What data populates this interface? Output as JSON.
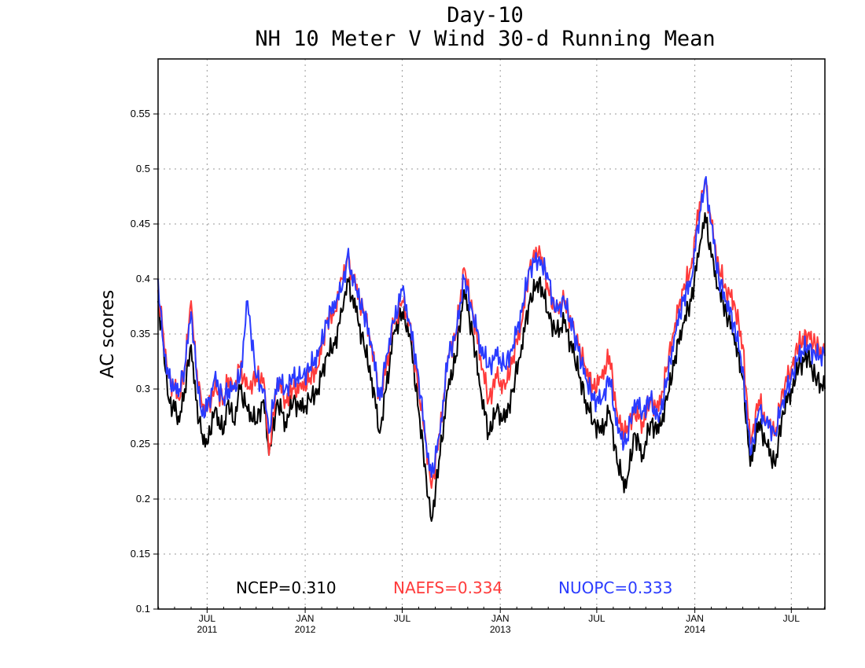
{
  "chart_data": {
    "type": "line",
    "title": "Day-10",
    "subtitle": "NH 10 Meter V Wind 30-d Running Mean",
    "xlabel": "",
    "ylabel": "AC scores",
    "xlim": [
      "2011-03-31",
      "2014-09-02"
    ],
    "ylim": [
      0.1,
      0.6
    ],
    "yticks": [
      0.1,
      0.15,
      0.2,
      0.25,
      0.3,
      0.35,
      0.4,
      0.45,
      0.5,
      0.55
    ],
    "xticks": [
      {
        "date": "2011-07-01",
        "label": "JUL",
        "year": "2011"
      },
      {
        "date": "2012-01-01",
        "label": "JAN",
        "year": "2012"
      },
      {
        "date": "2012-07-01",
        "label": "JUL",
        "year": ""
      },
      {
        "date": "2013-01-01",
        "label": "JAN",
        "year": "2013"
      },
      {
        "date": "2013-07-01",
        "label": "JUL",
        "year": ""
      },
      {
        "date": "2014-01-01",
        "label": "JAN",
        "year": "2014"
      },
      {
        "date": "2014-07-01",
        "label": "JUL",
        "year": ""
      }
    ],
    "grid": true,
    "legend_position": "bottom",
    "series": [
      {
        "name": "NCEP",
        "mean_label": "NCEP=0.310",
        "color": "#000000",
        "points": [
          [
            "2011-03-31",
            0.38
          ],
          [
            "2011-04-10",
            0.34
          ],
          [
            "2011-04-20",
            0.29
          ],
          [
            "2011-05-01",
            0.28
          ],
          [
            "2011-05-10",
            0.27
          ],
          [
            "2011-05-20",
            0.3
          ],
          [
            "2011-06-01",
            0.34
          ],
          [
            "2011-06-10",
            0.29
          ],
          [
            "2011-06-20",
            0.26
          ],
          [
            "2011-07-01",
            0.25
          ],
          [
            "2011-07-15",
            0.28
          ],
          [
            "2011-08-01",
            0.26
          ],
          [
            "2011-08-10",
            0.29
          ],
          [
            "2011-08-20",
            0.27
          ],
          [
            "2011-09-01",
            0.3
          ],
          [
            "2011-09-15",
            0.28
          ],
          [
            "2011-10-01",
            0.27
          ],
          [
            "2011-10-15",
            0.29
          ],
          [
            "2011-10-25",
            0.24
          ],
          [
            "2011-11-10",
            0.29
          ],
          [
            "2011-11-25",
            0.27
          ],
          [
            "2011-12-10",
            0.29
          ],
          [
            "2011-12-25",
            0.28
          ],
          [
            "2012-01-10",
            0.29
          ],
          [
            "2012-01-25",
            0.3
          ],
          [
            "2012-02-10",
            0.33
          ],
          [
            "2012-02-25",
            0.34
          ],
          [
            "2012-03-10",
            0.37
          ],
          [
            "2012-03-20",
            0.4
          ],
          [
            "2012-04-05",
            0.37
          ],
          [
            "2012-04-20",
            0.34
          ],
          [
            "2012-05-05",
            0.31
          ],
          [
            "2012-05-20",
            0.26
          ],
          [
            "2012-06-01",
            0.3
          ],
          [
            "2012-06-15",
            0.35
          ],
          [
            "2012-07-01",
            0.37
          ],
          [
            "2012-07-15",
            0.35
          ],
          [
            "2012-08-01",
            0.28
          ],
          [
            "2012-08-15",
            0.22
          ],
          [
            "2012-08-25",
            0.18
          ],
          [
            "2012-09-10",
            0.24
          ],
          [
            "2012-09-25",
            0.3
          ],
          [
            "2012-10-10",
            0.33
          ],
          [
            "2012-10-25",
            0.39
          ],
          [
            "2012-11-10",
            0.35
          ],
          [
            "2012-11-25",
            0.3
          ],
          [
            "2012-12-10",
            0.26
          ],
          [
            "2012-12-25",
            0.28
          ],
          [
            "2013-01-10",
            0.27
          ],
          [
            "2013-01-25",
            0.3
          ],
          [
            "2013-02-10",
            0.34
          ],
          [
            "2013-02-25",
            0.38
          ],
          [
            "2013-03-15",
            0.4
          ],
          [
            "2013-04-01",
            0.37
          ],
          [
            "2013-04-15",
            0.35
          ],
          [
            "2013-05-01",
            0.36
          ],
          [
            "2013-05-20",
            0.33
          ],
          [
            "2013-06-10",
            0.29
          ],
          [
            "2013-06-25",
            0.27
          ],
          [
            "2013-07-10",
            0.26
          ],
          [
            "2013-07-25",
            0.28
          ],
          [
            "2013-08-10",
            0.23
          ],
          [
            "2013-08-25",
            0.21
          ],
          [
            "2013-09-10",
            0.26
          ],
          [
            "2013-09-25",
            0.24
          ],
          [
            "2013-10-10",
            0.27
          ],
          [
            "2013-10-25",
            0.26
          ],
          [
            "2013-11-10",
            0.29
          ],
          [
            "2013-11-25",
            0.33
          ],
          [
            "2013-12-10",
            0.36
          ],
          [
            "2013-12-25",
            0.38
          ],
          [
            "2014-01-10",
            0.43
          ],
          [
            "2014-01-20",
            0.46
          ],
          [
            "2014-02-01",
            0.42
          ],
          [
            "2014-02-15",
            0.39
          ],
          [
            "2014-03-01",
            0.37
          ],
          [
            "2014-03-15",
            0.35
          ],
          [
            "2014-04-01",
            0.31
          ],
          [
            "2014-04-15",
            0.23
          ],
          [
            "2014-05-01",
            0.27
          ],
          [
            "2014-05-15",
            0.25
          ],
          [
            "2014-06-01",
            0.23
          ],
          [
            "2014-06-15",
            0.28
          ],
          [
            "2014-07-01",
            0.3
          ],
          [
            "2014-07-15",
            0.32
          ],
          [
            "2014-08-01",
            0.33
          ],
          [
            "2014-08-15",
            0.31
          ],
          [
            "2014-09-02",
            0.3
          ]
        ]
      },
      {
        "name": "NAEFS",
        "mean_label": "NAEFS=0.334",
        "color": "#ff3b3b",
        "points": [
          [
            "2011-03-31",
            0.39
          ],
          [
            "2011-04-10",
            0.35
          ],
          [
            "2011-04-20",
            0.31
          ],
          [
            "2011-05-01",
            0.3
          ],
          [
            "2011-05-10",
            0.29
          ],
          [
            "2011-05-20",
            0.32
          ],
          [
            "2011-06-01",
            0.38
          ],
          [
            "2011-06-10",
            0.32
          ],
          [
            "2011-06-20",
            0.29
          ],
          [
            "2011-07-01",
            0.28
          ],
          [
            "2011-07-15",
            0.3
          ],
          [
            "2011-08-01",
            0.29
          ],
          [
            "2011-08-10",
            0.31
          ],
          [
            "2011-08-20",
            0.3
          ],
          [
            "2011-09-01",
            0.32
          ],
          [
            "2011-09-15",
            0.3
          ],
          [
            "2011-10-01",
            0.31
          ],
          [
            "2011-10-15",
            0.31
          ],
          [
            "2011-10-25",
            0.24
          ],
          [
            "2011-11-10",
            0.31
          ],
          [
            "2011-11-25",
            0.29
          ],
          [
            "2011-12-10",
            0.3
          ],
          [
            "2011-12-25",
            0.3
          ],
          [
            "2012-01-10",
            0.31
          ],
          [
            "2012-01-25",
            0.32
          ],
          [
            "2012-02-10",
            0.36
          ],
          [
            "2012-02-25",
            0.37
          ],
          [
            "2012-03-10",
            0.4
          ],
          [
            "2012-03-20",
            0.42
          ],
          [
            "2012-04-05",
            0.39
          ],
          [
            "2012-04-20",
            0.37
          ],
          [
            "2012-05-05",
            0.34
          ],
          [
            "2012-05-20",
            0.29
          ],
          [
            "2012-06-01",
            0.32
          ],
          [
            "2012-06-15",
            0.36
          ],
          [
            "2012-07-01",
            0.38
          ],
          [
            "2012-07-15",
            0.36
          ],
          [
            "2012-08-01",
            0.3
          ],
          [
            "2012-08-15",
            0.25
          ],
          [
            "2012-08-25",
            0.21
          ],
          [
            "2012-09-10",
            0.26
          ],
          [
            "2012-09-25",
            0.33
          ],
          [
            "2012-10-10",
            0.35
          ],
          [
            "2012-10-25",
            0.41
          ],
          [
            "2012-11-10",
            0.37
          ],
          [
            "2012-11-25",
            0.33
          ],
          [
            "2012-12-10",
            0.29
          ],
          [
            "2012-12-25",
            0.31
          ],
          [
            "2013-01-10",
            0.3
          ],
          [
            "2013-01-25",
            0.33
          ],
          [
            "2013-02-10",
            0.36
          ],
          [
            "2013-02-25",
            0.41
          ],
          [
            "2013-03-15",
            0.43
          ],
          [
            "2013-04-01",
            0.39
          ],
          [
            "2013-04-15",
            0.37
          ],
          [
            "2013-05-01",
            0.38
          ],
          [
            "2013-05-20",
            0.35
          ],
          [
            "2013-06-10",
            0.32
          ],
          [
            "2013-06-25",
            0.3
          ],
          [
            "2013-07-10",
            0.31
          ],
          [
            "2013-07-25",
            0.33
          ],
          [
            "2013-08-10",
            0.27
          ],
          [
            "2013-08-25",
            0.26
          ],
          [
            "2013-09-10",
            0.28
          ],
          [
            "2013-09-25",
            0.27
          ],
          [
            "2013-10-10",
            0.29
          ],
          [
            "2013-10-25",
            0.28
          ],
          [
            "2013-11-10",
            0.32
          ],
          [
            "2013-11-25",
            0.36
          ],
          [
            "2013-12-10",
            0.39
          ],
          [
            "2013-12-25",
            0.41
          ],
          [
            "2014-01-10",
            0.47
          ],
          [
            "2014-01-20",
            0.49
          ],
          [
            "2014-02-01",
            0.45
          ],
          [
            "2014-02-15",
            0.41
          ],
          [
            "2014-03-01",
            0.39
          ],
          [
            "2014-03-15",
            0.38
          ],
          [
            "2014-04-01",
            0.34
          ],
          [
            "2014-04-15",
            0.25
          ],
          [
            "2014-05-01",
            0.29
          ],
          [
            "2014-05-15",
            0.27
          ],
          [
            "2014-06-01",
            0.26
          ],
          [
            "2014-06-15",
            0.3
          ],
          [
            "2014-07-01",
            0.32
          ],
          [
            "2014-07-15",
            0.34
          ],
          [
            "2014-08-01",
            0.35
          ],
          [
            "2014-08-15",
            0.34
          ],
          [
            "2014-09-02",
            0.33
          ]
        ]
      },
      {
        "name": "NUOPC",
        "mean_label": "NUOPC=0.333",
        "color": "#2a3bff",
        "points": [
          [
            "2011-03-31",
            0.4
          ],
          [
            "2011-04-10",
            0.34
          ],
          [
            "2011-04-20",
            0.31
          ],
          [
            "2011-05-01",
            0.3
          ],
          [
            "2011-05-10",
            0.3
          ],
          [
            "2011-05-20",
            0.32
          ],
          [
            "2011-06-01",
            0.37
          ],
          [
            "2011-06-10",
            0.32
          ],
          [
            "2011-06-20",
            0.28
          ],
          [
            "2011-07-01",
            0.28
          ],
          [
            "2011-07-15",
            0.31
          ],
          [
            "2011-08-01",
            0.29
          ],
          [
            "2011-08-10",
            0.3
          ],
          [
            "2011-08-20",
            0.3
          ],
          [
            "2011-09-01",
            0.31
          ],
          [
            "2011-09-15",
            0.38
          ],
          [
            "2011-10-01",
            0.31
          ],
          [
            "2011-10-15",
            0.3
          ],
          [
            "2011-10-25",
            0.26
          ],
          [
            "2011-11-10",
            0.31
          ],
          [
            "2011-11-25",
            0.3
          ],
          [
            "2011-12-10",
            0.31
          ],
          [
            "2011-12-25",
            0.31
          ],
          [
            "2012-01-10",
            0.32
          ],
          [
            "2012-01-25",
            0.33
          ],
          [
            "2012-02-10",
            0.36
          ],
          [
            "2012-02-25",
            0.38
          ],
          [
            "2012-03-10",
            0.39
          ],
          [
            "2012-03-20",
            0.42
          ],
          [
            "2012-04-05",
            0.39
          ],
          [
            "2012-04-20",
            0.37
          ],
          [
            "2012-05-05",
            0.34
          ],
          [
            "2012-05-20",
            0.29
          ],
          [
            "2012-06-01",
            0.33
          ],
          [
            "2012-06-15",
            0.36
          ],
          [
            "2012-07-01",
            0.39
          ],
          [
            "2012-07-15",
            0.36
          ],
          [
            "2012-08-01",
            0.31
          ],
          [
            "2012-08-15",
            0.25
          ],
          [
            "2012-08-25",
            0.22
          ],
          [
            "2012-09-10",
            0.26
          ],
          [
            "2012-09-25",
            0.33
          ],
          [
            "2012-10-10",
            0.35
          ],
          [
            "2012-10-25",
            0.4
          ],
          [
            "2012-11-10",
            0.37
          ],
          [
            "2012-11-25",
            0.34
          ],
          [
            "2012-12-10",
            0.32
          ],
          [
            "2012-12-25",
            0.33
          ],
          [
            "2013-01-10",
            0.32
          ],
          [
            "2013-01-25",
            0.34
          ],
          [
            "2013-02-10",
            0.37
          ],
          [
            "2013-02-25",
            0.41
          ],
          [
            "2013-03-15",
            0.42
          ],
          [
            "2013-04-01",
            0.4
          ],
          [
            "2013-04-15",
            0.37
          ],
          [
            "2013-05-01",
            0.38
          ],
          [
            "2013-05-20",
            0.35
          ],
          [
            "2013-06-10",
            0.31
          ],
          [
            "2013-06-25",
            0.29
          ],
          [
            "2013-07-10",
            0.29
          ],
          [
            "2013-07-25",
            0.31
          ],
          [
            "2013-08-10",
            0.26
          ],
          [
            "2013-08-25",
            0.25
          ],
          [
            "2013-09-10",
            0.29
          ],
          [
            "2013-09-25",
            0.28
          ],
          [
            "2013-10-10",
            0.29
          ],
          [
            "2013-10-25",
            0.27
          ],
          [
            "2013-11-10",
            0.31
          ],
          [
            "2013-11-25",
            0.35
          ],
          [
            "2013-12-10",
            0.38
          ],
          [
            "2013-12-25",
            0.4
          ],
          [
            "2014-01-10",
            0.46
          ],
          [
            "2014-01-20",
            0.49
          ],
          [
            "2014-02-01",
            0.45
          ],
          [
            "2014-02-15",
            0.4
          ],
          [
            "2014-03-01",
            0.38
          ],
          [
            "2014-03-15",
            0.36
          ],
          [
            "2014-04-01",
            0.32
          ],
          [
            "2014-04-15",
            0.24
          ],
          [
            "2014-05-01",
            0.28
          ],
          [
            "2014-05-15",
            0.27
          ],
          [
            "2014-06-01",
            0.26
          ],
          [
            "2014-06-15",
            0.29
          ],
          [
            "2014-07-01",
            0.31
          ],
          [
            "2014-07-15",
            0.33
          ],
          [
            "2014-08-01",
            0.34
          ],
          [
            "2014-08-15",
            0.33
          ],
          [
            "2014-09-02",
            0.33
          ]
        ]
      }
    ]
  }
}
